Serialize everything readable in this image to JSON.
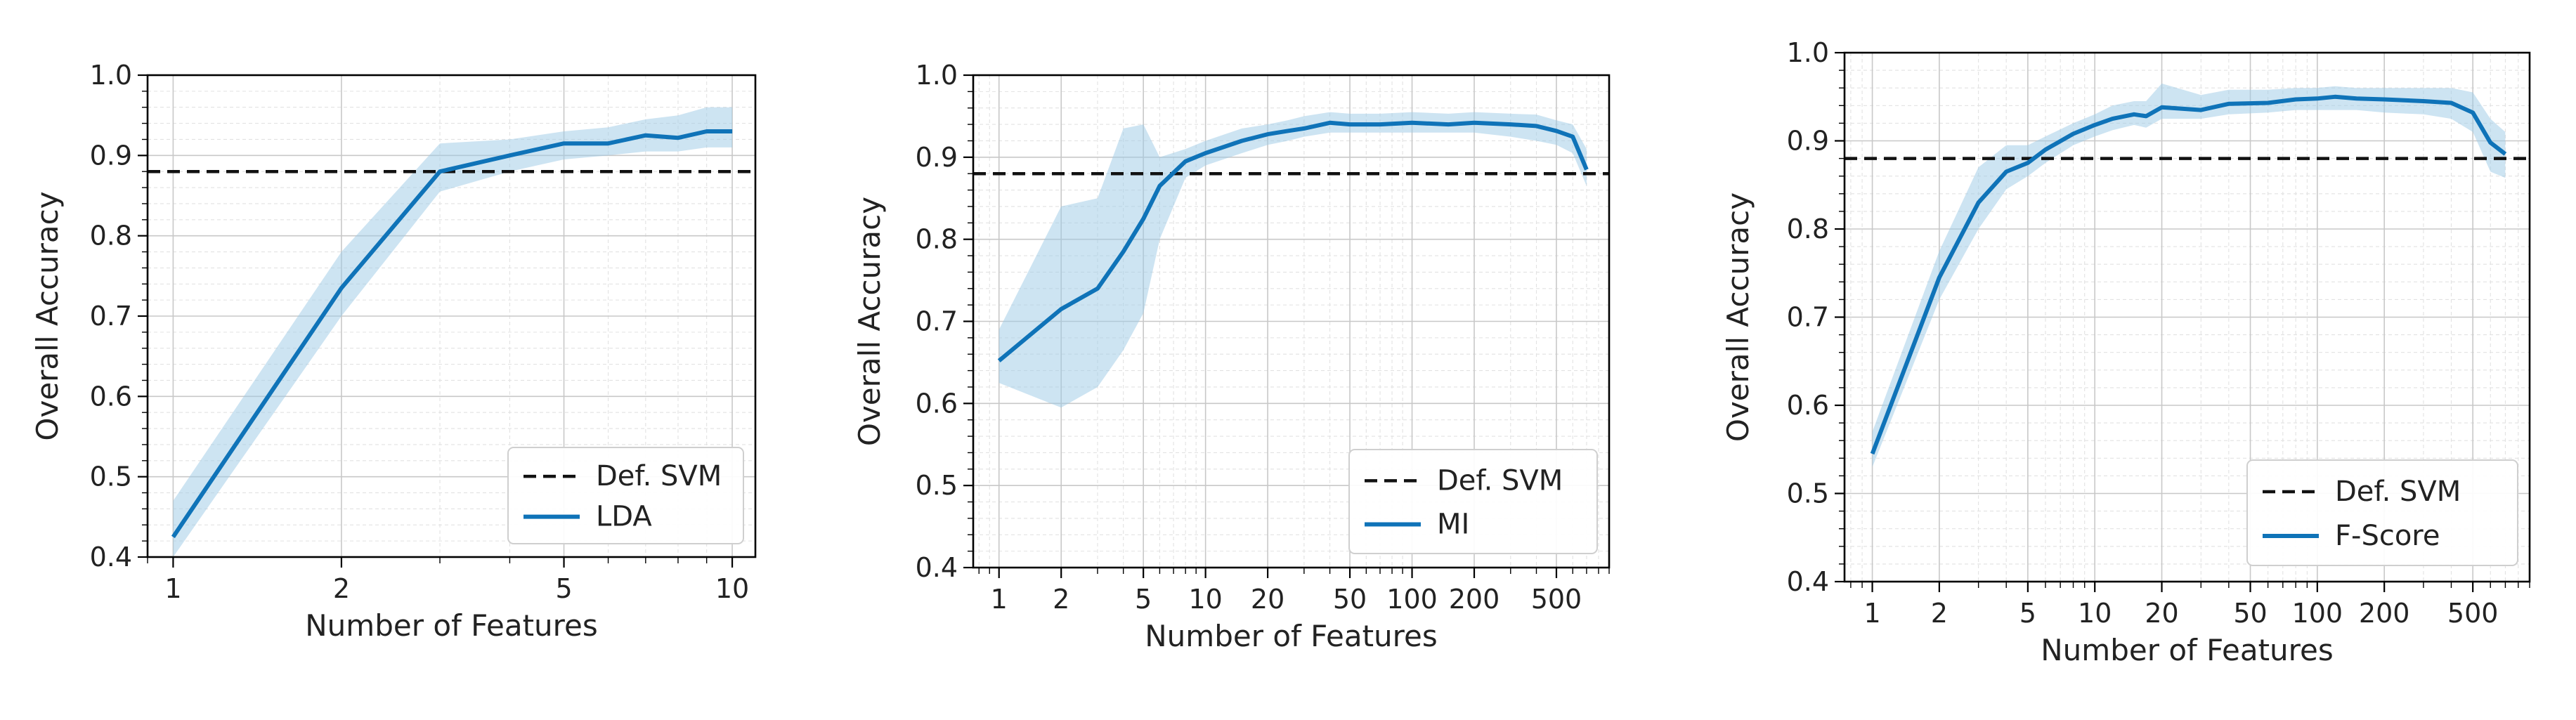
{
  "chart_data": [
    {
      "type": "line",
      "xlabel": "Number of Features",
      "ylabel": "Overall Accuracy",
      "xscale": "log",
      "xlim": [
        0.9,
        11
      ],
      "ylim": [
        0.4,
        1.0
      ],
      "xticks": [
        1,
        2,
        5,
        10
      ],
      "xtick_labels": [
        "1",
        "2",
        "5",
        "10"
      ],
      "yticks": [
        0.4,
        0.5,
        0.6,
        0.7,
        0.8,
        0.9,
        1.0
      ],
      "ytick_labels": [
        "0.4",
        "0.5",
        "0.6",
        "0.7",
        "0.8",
        "0.9",
        "1.0"
      ],
      "grid": true,
      "legend_position": "bottom-right",
      "reference": {
        "name": "Def. SVM",
        "value": 0.88
      },
      "series": [
        {
          "name": "LDA",
          "x": [
            1,
            2,
            3,
            4,
            5,
            6,
            7,
            8,
            9,
            10
          ],
          "y": [
            0.425,
            0.735,
            0.88,
            0.9,
            0.915,
            0.915,
            0.925,
            0.922,
            0.93,
            0.93
          ],
          "lower": [
            0.4,
            0.7,
            0.855,
            0.88,
            0.895,
            0.9,
            0.905,
            0.905,
            0.91,
            0.91
          ],
          "upper": [
            0.47,
            0.78,
            0.915,
            0.92,
            0.93,
            0.935,
            0.945,
            0.95,
            0.96,
            0.96
          ]
        }
      ]
    },
    {
      "type": "line",
      "xlabel": "Number of Features",
      "ylabel": "Overall Accuracy",
      "xscale": "log",
      "xlim": [
        0.75,
        900
      ],
      "ylim": [
        0.4,
        1.0
      ],
      "xticks": [
        1,
        2,
        5,
        10,
        20,
        50,
        100,
        200,
        500
      ],
      "xtick_labels": [
        "1",
        "2",
        "5",
        "10",
        "20",
        "50",
        "100",
        "200",
        "500"
      ],
      "yticks": [
        0.4,
        0.5,
        0.6,
        0.7,
        0.8,
        0.9,
        1.0
      ],
      "ytick_labels": [
        "0.4",
        "0.5",
        "0.6",
        "0.7",
        "0.8",
        "0.9",
        "1.0"
      ],
      "grid": true,
      "legend_position": "bottom-right",
      "reference": {
        "name": "Def. SVM",
        "value": 0.88
      },
      "series": [
        {
          "name": "MI",
          "x": [
            1,
            2,
            3,
            4,
            5,
            6,
            8,
            10,
            15,
            20,
            25,
            30,
            40,
            50,
            70,
            100,
            150,
            200,
            300,
            400,
            500,
            600,
            700
          ],
          "y": [
            0.652,
            0.715,
            0.74,
            0.785,
            0.825,
            0.865,
            0.895,
            0.905,
            0.92,
            0.928,
            0.932,
            0.935,
            0.942,
            0.94,
            0.94,
            0.942,
            0.94,
            0.942,
            0.94,
            0.938,
            0.932,
            0.925,
            0.885
          ],
          "lower": [
            0.625,
            0.595,
            0.62,
            0.665,
            0.71,
            0.8,
            0.875,
            0.89,
            0.905,
            0.915,
            0.92,
            0.925,
            0.93,
            0.93,
            0.93,
            0.93,
            0.93,
            0.93,
            0.925,
            0.92,
            0.915,
            0.905,
            0.865
          ],
          "upper": [
            0.69,
            0.84,
            0.85,
            0.935,
            0.94,
            0.9,
            0.91,
            0.92,
            0.935,
            0.94,
            0.945,
            0.95,
            0.955,
            0.953,
            0.953,
            0.955,
            0.953,
            0.955,
            0.953,
            0.952,
            0.945,
            0.94,
            0.91
          ]
        }
      ]
    },
    {
      "type": "line",
      "xlabel": "Number of Features",
      "ylabel": "Overall Accuracy",
      "xscale": "log",
      "xlim": [
        0.75,
        900
      ],
      "ylim": [
        0.4,
        1.0
      ],
      "xticks": [
        1,
        2,
        5,
        10,
        20,
        50,
        100,
        200,
        500
      ],
      "xtick_labels": [
        "1",
        "2",
        "5",
        "10",
        "20",
        "50",
        "100",
        "200",
        "500"
      ],
      "yticks": [
        0.4,
        0.5,
        0.6,
        0.7,
        0.8,
        0.9,
        1.0
      ],
      "ytick_labels": [
        "0.4",
        "0.5",
        "0.6",
        "0.7",
        "0.8",
        "0.9",
        "1.0"
      ],
      "grid": true,
      "legend_position": "bottom-right",
      "reference": {
        "name": "Def. SVM",
        "value": 0.88
      },
      "series": [
        {
          "name": "F-Score",
          "x": [
            1,
            2,
            3,
            4,
            5,
            6,
            8,
            10,
            12,
            15,
            17,
            20,
            30,
            40,
            60,
            80,
            100,
            120,
            150,
            200,
            300,
            400,
            500,
            600,
            700
          ],
          "y": [
            0.545,
            0.745,
            0.83,
            0.865,
            0.875,
            0.89,
            0.908,
            0.918,
            0.925,
            0.93,
            0.928,
            0.938,
            0.935,
            0.942,
            0.943,
            0.947,
            0.948,
            0.95,
            0.948,
            0.947,
            0.945,
            0.943,
            0.932,
            0.898,
            0.885
          ],
          "lower": [
            0.53,
            0.72,
            0.8,
            0.845,
            0.86,
            0.875,
            0.895,
            0.905,
            0.912,
            0.918,
            0.915,
            0.925,
            0.925,
            0.93,
            0.932,
            0.935,
            0.935,
            0.935,
            0.935,
            0.932,
            0.93,
            0.925,
            0.91,
            0.865,
            0.858
          ],
          "upper": [
            0.57,
            0.775,
            0.87,
            0.895,
            0.895,
            0.905,
            0.92,
            0.93,
            0.94,
            0.945,
            0.945,
            0.965,
            0.952,
            0.958,
            0.958,
            0.96,
            0.96,
            0.962,
            0.96,
            0.96,
            0.96,
            0.96,
            0.955,
            0.925,
            0.91
          ]
        }
      ]
    }
  ]
}
